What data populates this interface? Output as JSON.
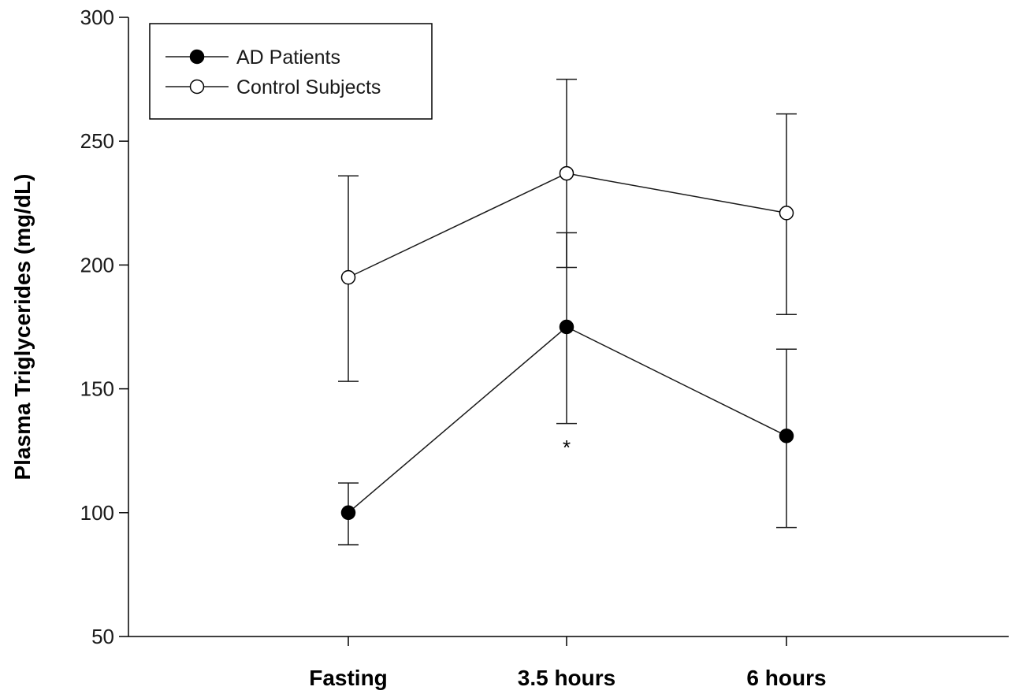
{
  "chart_data": {
    "type": "line",
    "ylabel": "Plasma Triglycerides (mg/dL)",
    "xlabel": "",
    "ylim": [
      50,
      300
    ],
    "yticks": [
      50,
      100,
      150,
      200,
      250,
      300
    ],
    "categories": [
      "Fasting",
      "3.5 hours",
      "6 hours"
    ],
    "legend_position": "top-left",
    "grid": false,
    "series": [
      {
        "name": "AD Patients",
        "marker": "filled-circle",
        "values": [
          100,
          175,
          131
        ],
        "error_upper": [
          112,
          213,
          166
        ],
        "error_lower": [
          87,
          136,
          94
        ]
      },
      {
        "name": "Control Subjects",
        "marker": "open-circle",
        "values": [
          195,
          237,
          221
        ],
        "error_upper": [
          236,
          275,
          261
        ],
        "error_lower": [
          153,
          199,
          180
        ]
      }
    ],
    "annotations": [
      {
        "text": "*",
        "category": "3.5 hours",
        "y": 128
      }
    ]
  }
}
